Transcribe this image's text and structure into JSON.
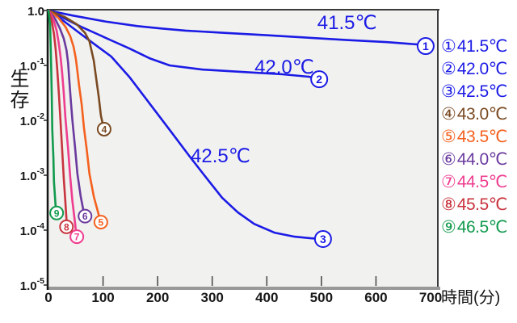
{
  "axes": {
    "y_title": "生存",
    "x_title": "時間(分)"
  },
  "colors": {
    "blue": "#1b1be6",
    "plot_background": "#f1f1ef",
    "axis_gray": "#999999",
    "axis_black": "#151515",
    "border_dark": "#3b3b3b",
    "text_black": "#181818"
  },
  "legend": {
    "items": [
      {
        "num": "①",
        "label": "41.5℃",
        "color": "#1b1be6"
      },
      {
        "num": "②",
        "label": "42.0℃",
        "color": "#1b1be6"
      },
      {
        "num": "③",
        "label": "42.5℃",
        "color": "#1b1be6"
      },
      {
        "num": "④",
        "label": "43.0℃",
        "color": "#7a4a22"
      },
      {
        "num": "⑤",
        "label": "43.5℃",
        "color": "#f4611f"
      },
      {
        "num": "⑥",
        "label": "44.0℃",
        "color": "#6a3a9e"
      },
      {
        "num": "⑦",
        "label": "44.5℃",
        "color": "#ee3d8f"
      },
      {
        "num": "⑧",
        "label": "45.5℃",
        "color": "#c8343e"
      },
      {
        "num": "⑨",
        "label": "46.5℃",
        "color": "#119a4d"
      }
    ]
  },
  "chart_data": {
    "type": "line",
    "title": "",
    "xlabel": "時間(分)",
    "ylabel": "生存",
    "x_axis": {
      "scale": "linear",
      "range": [
        0,
        715
      ],
      "ticks": [
        0,
        100,
        200,
        300,
        400,
        500,
        600,
        700
      ],
      "tick_marks": [
        100,
        200,
        300,
        400,
        500,
        600
      ]
    },
    "y_axis": {
      "scale": "log",
      "range": [
        1.0,
        1e-05
      ],
      "tick_base": "1.0",
      "tick_exponents": [
        0,
        -1,
        -2,
        -3,
        -4,
        -5
      ],
      "tick_labels": [
        "1.0",
        "1.0⁻¹",
        "1.0⁻²",
        "1.0⁻³",
        "1.0⁻⁴",
        "1.0⁻⁵"
      ]
    },
    "grid": false,
    "legend_position": "right-outside",
    "series": [
      {
        "id": 1,
        "name": "41.5℃",
        "color": "#1b1be6",
        "points": [
          [
            0,
            1.0
          ],
          [
            44,
            0.81
          ],
          [
            104,
            0.63
          ],
          [
            163,
            0.52
          ],
          [
            207,
            0.47
          ],
          [
            251,
            0.43
          ],
          [
            325,
            0.39
          ],
          [
            399,
            0.355
          ],
          [
            473,
            0.32
          ],
          [
            547,
            0.29
          ],
          [
            621,
            0.265
          ],
          [
            677,
            0.24
          ]
        ],
        "end_marker": {
          "t": 691,
          "s": 0.225,
          "label": "1"
        }
      },
      {
        "id": 2,
        "name": "42.0℃",
        "color": "#1b1be6",
        "points": [
          [
            0,
            1.0
          ],
          [
            30,
            0.71
          ],
          [
            59,
            0.51
          ],
          [
            89,
            0.375
          ],
          [
            115,
            0.286
          ],
          [
            148,
            0.204
          ],
          [
            185,
            0.135
          ],
          [
            222,
            0.1
          ],
          [
            281,
            0.084
          ],
          [
            355,
            0.076
          ],
          [
            429,
            0.069
          ],
          [
            478,
            0.062
          ]
        ],
        "end_marker": {
          "t": 496,
          "s": 0.056,
          "label": "2"
        }
      },
      {
        "id": 3,
        "name": "42.5℃",
        "color": "#1b1be6",
        "points": [
          [
            0,
            1.0
          ],
          [
            30,
            0.62
          ],
          [
            59,
            0.375
          ],
          [
            89,
            0.225
          ],
          [
            115,
            0.145
          ],
          [
            148,
            0.062
          ],
          [
            185,
            0.0204
          ],
          [
            222,
            0.0067
          ],
          [
            259,
            0.00218
          ],
          [
            289,
            0.0009
          ],
          [
            318,
            0.00039
          ],
          [
            347,
            0.00021
          ],
          [
            377,
            0.00013
          ],
          [
            414,
            9e-05
          ],
          [
            451,
            7.6e-05
          ],
          [
            481,
            7.1e-05
          ]
        ],
        "end_marker": {
          "t": 503,
          "s": 6.9e-05,
          "label": "3"
        }
      },
      {
        "id": 4,
        "name": "43.0℃",
        "color": "#7a4a22",
        "points": [
          [
            0,
            1.0
          ],
          [
            30,
            0.76
          ],
          [
            52,
            0.56
          ],
          [
            67,
            0.39
          ],
          [
            75,
            0.276
          ],
          [
            83,
            0.122
          ],
          [
            87,
            0.062
          ],
          [
            92,
            0.027
          ],
          [
            96,
            0.0122
          ],
          [
            99,
            0.009
          ]
        ],
        "end_marker": {
          "t": 102,
          "s": 0.0069,
          "label": "4"
        }
      },
      {
        "id": 5,
        "name": "43.5℃",
        "color": "#f4611f",
        "points": [
          [
            0,
            1.0
          ],
          [
            18,
            0.74
          ],
          [
            31,
            0.51
          ],
          [
            40,
            0.34
          ],
          [
            46,
            0.218
          ],
          [
            50,
            0.135
          ],
          [
            53,
            0.079
          ],
          [
            56,
            0.044
          ],
          [
            61,
            0.019
          ],
          [
            65,
            0.0074
          ],
          [
            70,
            0.003
          ],
          [
            75,
            0.00107
          ],
          [
            83,
            0.00041
          ],
          [
            92,
            0.00019
          ]
        ],
        "end_marker": {
          "t": 96,
          "s": 0.00014,
          "label": "5"
        }
      },
      {
        "id": 6,
        "name": "44.0℃",
        "color": "#6a3a9e",
        "points": [
          [
            0,
            1.0
          ],
          [
            12,
            0.71
          ],
          [
            21,
            0.47
          ],
          [
            28,
            0.31
          ],
          [
            33,
            0.19
          ],
          [
            36,
            0.111
          ],
          [
            38,
            0.056
          ],
          [
            41,
            0.0225
          ],
          [
            44,
            0.0097
          ],
          [
            49,
            0.003
          ],
          [
            53,
            0.00107
          ],
          [
            59,
            0.00041
          ],
          [
            64,
            0.00023
          ]
        ],
        "end_marker": {
          "t": 67,
          "s": 0.00018,
          "label": "6"
        }
      },
      {
        "id": 7,
        "name": "44.5℃",
        "color": "#ee3d8f",
        "points": [
          [
            0,
            1.0
          ],
          [
            9,
            0.69
          ],
          [
            15,
            0.43
          ],
          [
            19,
            0.25
          ],
          [
            22,
            0.145
          ],
          [
            25,
            0.074
          ],
          [
            28,
            0.032
          ],
          [
            31,
            0.0115
          ],
          [
            36,
            0.003
          ],
          [
            40,
            0.0009
          ],
          [
            44,
            0.00033
          ],
          [
            49,
            0.000127
          ],
          [
            50,
            0.0001
          ]
        ],
        "end_marker": {
          "t": 52,
          "s": 7.6e-05,
          "label": "7"
        }
      },
      {
        "id": 8,
        "name": "45.5℃",
        "color": "#c8343e",
        "points": [
          [
            0,
            1.0
          ],
          [
            6,
            0.64
          ],
          [
            10,
            0.375
          ],
          [
            13,
            0.204
          ],
          [
            16,
            0.087
          ],
          [
            19,
            0.032
          ],
          [
            22,
            0.0097
          ],
          [
            25,
            0.003
          ],
          [
            28,
            0.0009
          ],
          [
            31,
            0.00033
          ],
          [
            33,
            0.000155
          ]
        ],
        "end_marker": {
          "t": 33,
          "s": 0.000115,
          "label": "8"
        }
      },
      {
        "id": 9,
        "name": "46.5℃",
        "color": "#119a4d",
        "points": [
          [
            0,
            1.0
          ],
          [
            3,
            0.56
          ],
          [
            4,
            0.24
          ],
          [
            5,
            0.087
          ],
          [
            6,
            0.027
          ],
          [
            7,
            0.0069
          ],
          [
            9,
            0.0021
          ],
          [
            10,
            0.00076
          ],
          [
            13,
            0.00028
          ]
        ],
        "end_marker": {
          "t": 15,
          "s": 0.000205,
          "label": "9"
        }
      }
    ],
    "annotations": [
      {
        "text": "41.5℃",
        "t": 547,
        "s": 0.6,
        "color": "#1b1be6",
        "size": 24
      },
      {
        "text": "42.0℃",
        "t": 432,
        "s": 0.093,
        "color": "#1b1be6",
        "size": 24
      },
      {
        "text": "42.5℃",
        "t": 315,
        "s": 0.00224,
        "color": "#1b1be6",
        "size": 24
      }
    ]
  }
}
